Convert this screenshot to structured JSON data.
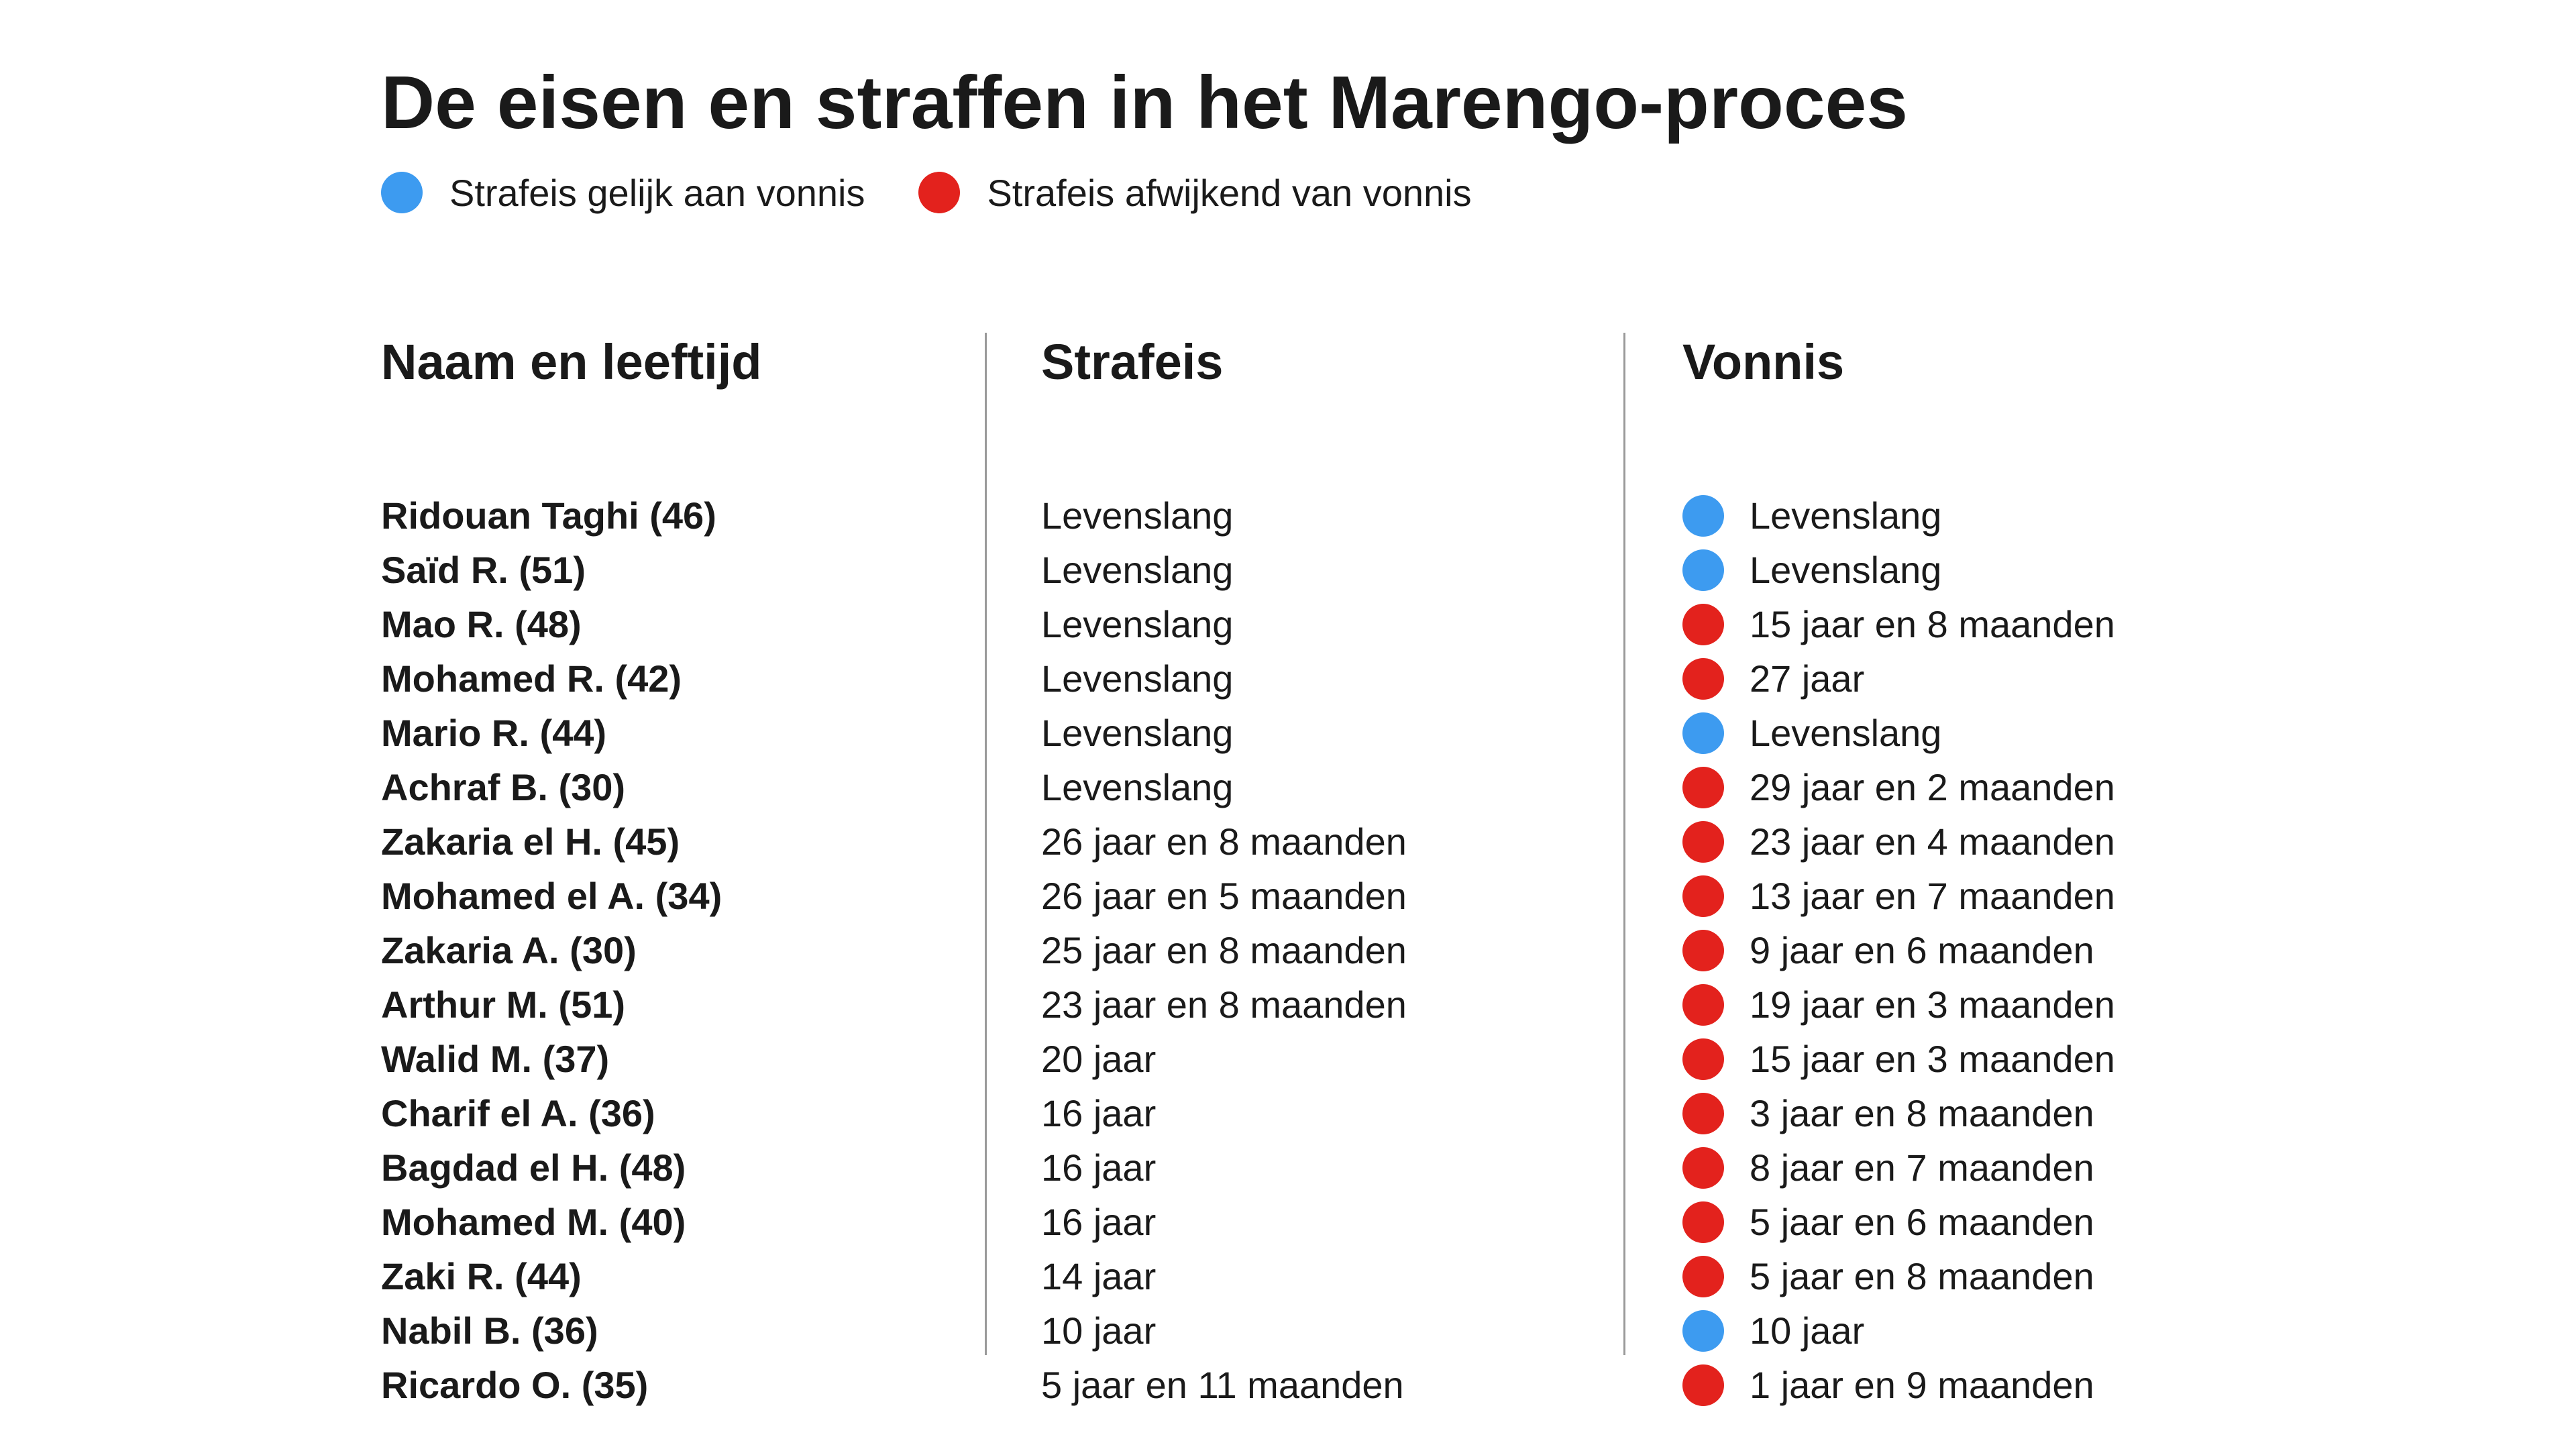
{
  "title": "De eisen en straffen in het Marengo-proces",
  "legend": [
    {
      "label": "Strafeis gelijk aan vonnis",
      "color": "#3d9bf0"
    },
    {
      "label": "Strafeis afwijkend van vonnis",
      "color": "#e3221d"
    }
  ],
  "columns": {
    "name": "Naam en leeftijd",
    "eis": "Strafeis",
    "vonnis": "Vonnis"
  },
  "rows": [
    {
      "name": "Ridouan Taghi (46)",
      "eis": "Levenslang",
      "vonnis": "Levenslang",
      "match": true
    },
    {
      "name": "Saïd R. (51)",
      "eis": "Levenslang",
      "vonnis": "Levenslang",
      "match": true
    },
    {
      "name": "Mao R. (48)",
      "eis": "Levenslang",
      "vonnis": "15 jaar en 8 maanden",
      "match": false
    },
    {
      "name": "Mohamed R. (42)",
      "eis": "Levenslang",
      "vonnis": "27 jaar",
      "match": false
    },
    {
      "name": "Mario R. (44)",
      "eis": "Levenslang",
      "vonnis": "Levenslang",
      "match": true
    },
    {
      "name": "Achraf B. (30)",
      "eis": "Levenslang",
      "vonnis": "29 jaar en 2 maanden",
      "match": false
    },
    {
      "name": "Zakaria el H. (45)",
      "eis": "26 jaar en 8 maanden",
      "vonnis": "23 jaar en 4 maanden",
      "match": false
    },
    {
      "name": "Mohamed el A. (34)",
      "eis": "26 jaar en 5 maanden",
      "vonnis": "13 jaar en 7 maanden",
      "match": false
    },
    {
      "name": "Zakaria A. (30)",
      "eis": "25 jaar en 8 maanden",
      "vonnis": "9 jaar en 6 maanden",
      "match": false
    },
    {
      "name": "Arthur M. (51)",
      "eis": "23 jaar en 8 maanden",
      "vonnis": "19 jaar en 3 maanden",
      "match": false
    },
    {
      "name": "Walid M. (37)",
      "eis": "20 jaar",
      "vonnis": "15 jaar en 3 maanden",
      "match": false
    },
    {
      "name": "Charif el A. (36)",
      "eis": "16 jaar",
      "vonnis": "3 jaar en 8 maanden",
      "match": false
    },
    {
      "name": "Bagdad el H. (48)",
      "eis": "16 jaar",
      "vonnis": "8 jaar en 7 maanden",
      "match": false
    },
    {
      "name": "Mohamed M. (40)",
      "eis": "16 jaar",
      "vonnis": "5 jaar en 6 maanden",
      "match": false
    },
    {
      "name": "Zaki R. (44)",
      "eis": "14 jaar",
      "vonnis": "5 jaar en 8 maanden",
      "match": false
    },
    {
      "name": "Nabil B. (36)",
      "eis": "10 jaar",
      "vonnis": "10 jaar",
      "match": true
    },
    {
      "name": "Ricardo O. (35)",
      "eis": "5 jaar en 11 maanden",
      "vonnis": "1 jaar en 9 maanden",
      "match": false
    }
  ]
}
